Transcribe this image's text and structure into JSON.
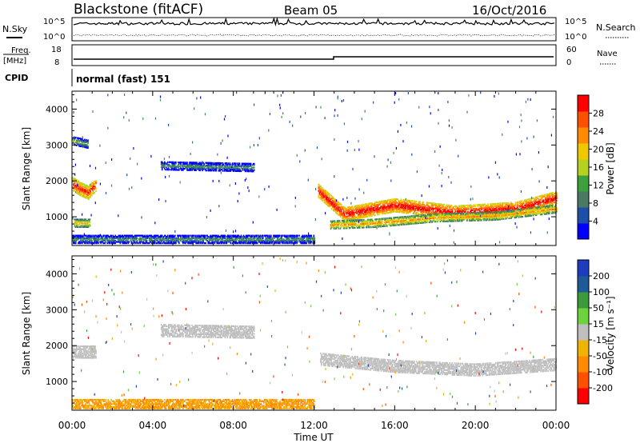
{
  "header": {
    "title": "Blackstone (fitACF)",
    "beam": "Beam 05",
    "date": "16/Oct/2016"
  },
  "top_panels": {
    "nsky": {
      "label": "N.Sky",
      "tick_high": "10^5",
      "tick_low": "10^0"
    },
    "nsearch": {
      "label": "N.Search",
      "tick_high": "10^5",
      "tick_low": "10^0"
    },
    "freq": {
      "label_line1": "Freq.",
      "label_line2": "[MHz]",
      "ticks": [
        "18",
        "8"
      ]
    },
    "nave": {
      "label": "Nave",
      "ticks": [
        "60",
        "0"
      ]
    },
    "cpid": {
      "label": "CPID",
      "value": "normal (fast) 151"
    }
  },
  "colors": {
    "background": "#ffffff",
    "axis": "#000000",
    "ground_scatter": "#bfbfbf"
  },
  "chart_data": [
    {
      "type": "heatmap",
      "name": "power",
      "ylabel": "Slant Range [km]",
      "xlabel": "",
      "xlim_hours": [
        0,
        24
      ],
      "ylim": [
        200,
        4500
      ],
      "x_tick_labels": [
        "00:00",
        "04:00",
        "08:00",
        "12:00",
        "16:00",
        "20:00",
        "00:00"
      ],
      "y_ticks": [
        1000,
        2000,
        3000,
        4000
      ],
      "colorbar": {
        "label": "Power [dB]",
        "range": [
          0,
          32
        ],
        "ticks": [
          "28",
          "24",
          "20",
          "16",
          "12",
          "8",
          "4"
        ],
        "colors": [
          "#0000ff",
          "#1e50aa",
          "#4a7a64",
          "#3da03d",
          "#b4d21e",
          "#f0c800",
          "#ff8c00",
          "#ff5000",
          "#ff0000"
        ]
      },
      "features": [
        {
          "t": [
            0.0,
            0.4,
            0.8,
            1.2
          ],
          "r": [
            1900,
            1750,
            1650,
            1900
          ],
          "value_db": 24
        },
        {
          "t": [
            0.0,
            0.8
          ],
          "r": [
            3100,
            3000
          ],
          "value_db": 8
        },
        {
          "t": [
            0.1,
            0.9
          ],
          "r": [
            800,
            800
          ],
          "value_db": 16
        },
        {
          "t": [
            4.4,
            9.0
          ],
          "r": [
            2400,
            2350
          ],
          "value_db": 6
        },
        {
          "t": [
            12.2,
            13.5,
            16.0,
            19.0,
            22.0,
            24.0
          ],
          "r": [
            1700,
            1050,
            1300,
            1100,
            1200,
            1500
          ],
          "value_db": 26
        },
        {
          "t": [
            12.8,
            15.0,
            18.0,
            21.0,
            24.0
          ],
          "r": [
            750,
            800,
            950,
            1000,
            1200
          ],
          "value_db": 18
        },
        {
          "t": [
            0.0,
            12.0
          ],
          "r": [
            350,
            350
          ],
          "value_db": 6
        }
      ]
    },
    {
      "type": "heatmap",
      "name": "velocity",
      "ylabel": "Slant Range [km]",
      "xlabel": "Time UT",
      "xlim_hours": [
        0,
        24
      ],
      "ylim": [
        200,
        4500
      ],
      "x_tick_labels": [
        "00:00",
        "04:00",
        "08:00",
        "12:00",
        "16:00",
        "20:00",
        "00:00"
      ],
      "y_ticks": [
        1000,
        2000,
        3000,
        4000
      ],
      "colorbar": {
        "label": "Velocity [m s⁻¹]",
        "ticks": [
          "200",
          "100",
          "50",
          "15",
          "-15",
          "-50",
          "-100",
          "-200"
        ],
        "colors": [
          "#ff0000",
          "#ff5000",
          "#ff8c00",
          "#f0b400",
          "#bfbfbf",
          "#6ed23c",
          "#3c9a3c",
          "#1e5a96",
          "#1e3cbe"
        ]
      },
      "features": [
        {
          "t": [
            0.0,
            1.2
          ],
          "r": [
            1800,
            1800
          ],
          "value": "ground_scatter"
        },
        {
          "t": [
            4.4,
            9.0
          ],
          "r": [
            2400,
            2350
          ],
          "value": "ground_scatter"
        },
        {
          "t": [
            12.3,
            16.0,
            20.0,
            24.0
          ],
          "r": [
            1600,
            1400,
            1300,
            1450
          ],
          "value": "ground_scatter"
        },
        {
          "t": [
            0.0,
            12.0
          ],
          "r": [
            350,
            350
          ],
          "value_ms": -60
        }
      ]
    }
  ]
}
